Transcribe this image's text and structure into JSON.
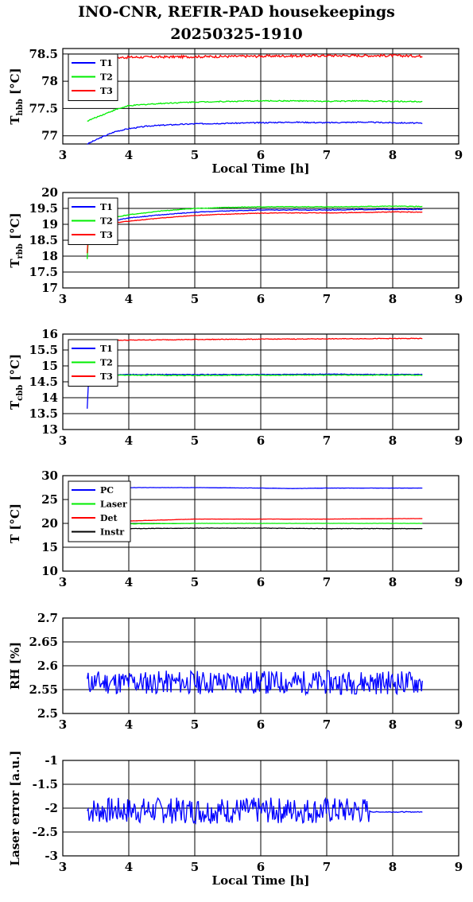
{
  "title_line1": "INO-CNR, REFIR-PAD housekeepings",
  "title_line2": "20250325-1910",
  "chart_data": [
    {
      "type": "line",
      "ylabel": "T",
      "ylabel_sub": "hbb",
      "ylabel_unit": " [°C]",
      "xlabel": "Local Time [h]",
      "xlim": [
        3,
        9
      ],
      "ylim": [
        76.85,
        78.6
      ],
      "xticks": [
        3,
        4,
        5,
        6,
        7,
        8,
        9
      ],
      "yticks": [
        77,
        77.5,
        78,
        78.5
      ],
      "yticklabels": [
        "77",
        "77.5",
        "78",
        "78.5"
      ],
      "grid": true,
      "legend": "top-left",
      "series": [
        {
          "name": "T1",
          "color": "#0000ff",
          "x": [
            3.37,
            3.6,
            3.8,
            4.0,
            4.3,
            4.6,
            5.0,
            5.5,
            6.0,
            6.5,
            7.0,
            7.5,
            8.0,
            8.45
          ],
          "y": [
            76.85,
            76.98,
            77.08,
            77.13,
            77.18,
            77.2,
            77.22,
            77.23,
            77.24,
            77.25,
            77.24,
            77.25,
            77.24,
            77.23
          ],
          "noise": 0.02
        },
        {
          "name": "T2",
          "color": "#00ee00",
          "x": [
            3.37,
            3.55,
            3.8,
            4.0,
            4.3,
            4.6,
            5.0,
            5.5,
            6.0,
            6.5,
            7.0,
            7.5,
            8.0,
            8.45
          ],
          "y": [
            77.27,
            77.36,
            77.48,
            77.55,
            77.58,
            77.6,
            77.62,
            77.63,
            77.64,
            77.64,
            77.63,
            77.64,
            77.63,
            77.63
          ],
          "noise": 0.02
        },
        {
          "name": "T3",
          "color": "#ff0000",
          "x": [
            3.5,
            4.0,
            5.0,
            6.0,
            7.0,
            8.0,
            8.45
          ],
          "y": [
            78.42,
            78.44,
            78.45,
            78.46,
            78.47,
            78.47,
            78.46
          ],
          "noise": 0.045
        }
      ]
    },
    {
      "type": "line",
      "ylabel": "T",
      "ylabel_sub": "rbb",
      "ylabel_unit": " [°C]",
      "xlabel": "",
      "xlim": [
        3,
        9
      ],
      "ylim": [
        17,
        20
      ],
      "xticks": [
        3,
        4,
        5,
        6,
        7,
        8,
        9
      ],
      "yticks": [
        17,
        17.5,
        18,
        18.5,
        19,
        19.5,
        20
      ],
      "yticklabels": [
        "17",
        "17.5",
        "18",
        "18.5",
        "19",
        "19.5",
        "20"
      ],
      "grid": true,
      "legend": "top-left",
      "series": [
        {
          "name": "T1",
          "color": "#0000ff",
          "x": [
            3.37,
            3.6,
            4.0,
            4.5,
            5.0,
            5.5,
            6.0,
            6.5,
            7.0,
            7.5,
            8.0,
            8.45
          ],
          "y": [
            18.9,
            19.05,
            19.2,
            19.3,
            19.38,
            19.42,
            19.45,
            19.45,
            19.45,
            19.46,
            19.47,
            19.47
          ],
          "noise": 0.02
        },
        {
          "name": "T2",
          "color": "#00ee00",
          "x": [
            3.37,
            3.38,
            3.4,
            3.6,
            4.0,
            4.5,
            5.0,
            5.5,
            6.0,
            6.5,
            7.0,
            7.5,
            8.0,
            8.45
          ],
          "y": [
            17.9,
            18.3,
            19.0,
            19.15,
            19.3,
            19.42,
            19.5,
            19.53,
            19.55,
            19.55,
            19.55,
            19.56,
            19.57,
            19.56
          ],
          "noise": 0.02
        },
        {
          "name": "T3",
          "color": "#ff0000",
          "x": [
            3.37,
            3.38,
            3.4,
            3.6,
            4.0,
            4.5,
            5.0,
            5.5,
            6.0,
            6.5,
            7.0,
            7.5,
            8.0,
            8.45
          ],
          "y": [
            18.1,
            18.5,
            18.85,
            19.0,
            19.1,
            19.2,
            19.28,
            19.32,
            19.35,
            19.36,
            19.36,
            19.37,
            19.39,
            19.38
          ],
          "noise": 0.02
        }
      ]
    },
    {
      "type": "line",
      "ylabel": "T",
      "ylabel_sub": "cbb",
      "ylabel_unit": " [°C]",
      "xlabel": "",
      "xlim": [
        3,
        9
      ],
      "ylim": [
        13,
        16
      ],
      "xticks": [
        3,
        4,
        5,
        6,
        7,
        8,
        9
      ],
      "yticks": [
        13,
        13.5,
        14,
        14.5,
        15,
        15.5,
        16
      ],
      "yticklabels": [
        "13",
        "13.5",
        "14",
        "14.5",
        "15",
        "15.5",
        "16"
      ],
      "grid": true,
      "legend": "top-left",
      "series": [
        {
          "name": "T1",
          "color": "#0000ff",
          "x": [
            3.37,
            3.38,
            3.4,
            3.6,
            4.0,
            5.0,
            6.0,
            7.0,
            8.0,
            8.45
          ],
          "y": [
            13.65,
            14.2,
            14.7,
            14.72,
            14.73,
            14.73,
            14.73,
            14.74,
            14.73,
            14.73
          ],
          "noise": 0.02
        },
        {
          "name": "T2",
          "color": "#00ee00",
          "x": [
            3.37,
            3.38,
            3.4,
            3.6,
            4.0,
            5.0,
            6.0,
            7.0,
            8.0,
            8.45
          ],
          "y": [
            14.45,
            14.6,
            14.7,
            14.71,
            14.71,
            14.7,
            14.71,
            14.71,
            14.71,
            14.71
          ],
          "noise": 0.02
        },
        {
          "name": "T3",
          "color": "#ff0000",
          "x": [
            3.5,
            4.0,
            5.0,
            6.0,
            7.0,
            8.0,
            8.45
          ],
          "y": [
            15.8,
            15.81,
            15.83,
            15.84,
            15.85,
            15.86,
            15.86
          ],
          "noise": 0.02
        }
      ]
    },
    {
      "type": "line",
      "ylabel": "T [°C]",
      "ylabel_sub": "",
      "ylabel_unit": "",
      "xlabel": "",
      "xlim": [
        3,
        9
      ],
      "ylim": [
        10,
        30
      ],
      "xticks": [
        3,
        4,
        5,
        6,
        7,
        8,
        9
      ],
      "yticks": [
        10,
        15,
        20,
        25,
        30
      ],
      "yticklabels": [
        "10",
        "15",
        "20",
        "25",
        "30"
      ],
      "grid": true,
      "legend": "top-left",
      "series": [
        {
          "name": "PC",
          "color": "#0000ff",
          "x": [
            3.4,
            4.0,
            5.0,
            6.0,
            6.5,
            7.0,
            8.0,
            8.45
          ],
          "y": [
            27.5,
            27.5,
            27.5,
            27.4,
            27.3,
            27.4,
            27.4,
            27.4
          ],
          "noise": 0.04
        },
        {
          "name": "Laser",
          "color": "#00ee00",
          "x": [
            3.4,
            4.0,
            5.0,
            6.0,
            7.0,
            8.0,
            8.45
          ],
          "y": [
            19.8,
            19.9,
            20.0,
            20.0,
            20.0,
            20.0,
            20.0
          ],
          "noise": 0.05
        },
        {
          "name": "Det",
          "color": "#ff0000",
          "x": [
            3.4,
            4.0,
            4.5,
            5.0,
            6.0,
            7.0,
            8.0,
            8.45
          ],
          "y": [
            20.2,
            20.5,
            20.7,
            20.9,
            20.9,
            20.9,
            21.0,
            21.0
          ],
          "noise": 0.05
        },
        {
          "name": "Instr",
          "color": "#000000",
          "x": [
            3.4,
            4.0,
            5.0,
            6.0,
            7.0,
            8.0,
            8.45
          ],
          "y": [
            18.8,
            18.9,
            19.0,
            19.0,
            18.9,
            18.9,
            18.9
          ],
          "noise": 0.08
        }
      ]
    },
    {
      "type": "line",
      "ylabel": "RH [%]",
      "ylabel_sub": "",
      "ylabel_unit": "",
      "xlabel": "",
      "xlim": [
        3,
        9
      ],
      "ylim": [
        2.5,
        2.7
      ],
      "xticks": [
        3,
        4,
        5,
        6,
        7,
        8,
        9
      ],
      "yticks": [
        2.5,
        2.55,
        2.6,
        2.65,
        2.7
      ],
      "yticklabels": [
        "2.5",
        "2.55",
        "2.6",
        "2.65",
        "2.7"
      ],
      "grid": true,
      "legend": "",
      "series": [
        {
          "name": "",
          "color": "#0000ff",
          "x": [
            3.37,
            8.45
          ],
          "y": [
            2.565,
            2.565
          ],
          "noise": 0.05,
          "seed": 11
        }
      ]
    },
    {
      "type": "line",
      "ylabel": "Laser error [a.u.]",
      "ylabel_sub": "",
      "ylabel_unit": "",
      "xlabel": "Local Time [h]",
      "xlim": [
        3,
        9
      ],
      "ylim": [
        -3,
        -1
      ],
      "xticks": [
        3,
        4,
        5,
        6,
        7,
        8,
        9
      ],
      "yticks": [
        -3,
        -2.5,
        -2,
        -1.5,
        -1
      ],
      "yticklabels": [
        "-3",
        "-2.5",
        "-2",
        "-1.5",
        "-1"
      ],
      "grid": true,
      "legend": "",
      "series": [
        {
          "name": "",
          "color": "#0000ff",
          "x": [
            3.37,
            7.6,
            7.7,
            8.45
          ],
          "y": [
            -2.05,
            -2.05,
            -2.08,
            -2.08
          ],
          "noise": 0.55,
          "noise_until": 7.65,
          "seed": 7
        }
      ]
    }
  ]
}
